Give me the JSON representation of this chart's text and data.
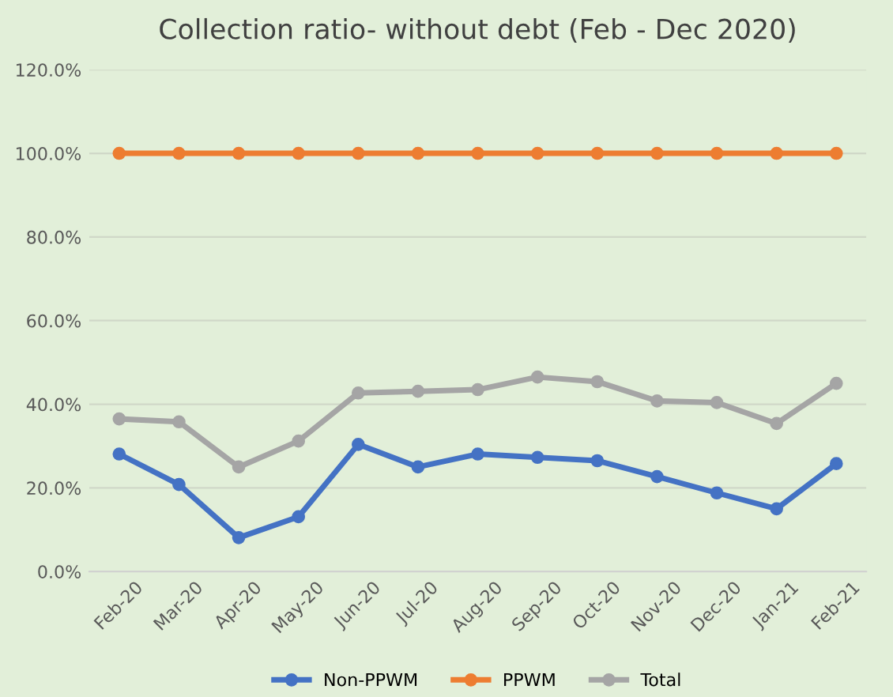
{
  "chart_data": {
    "type": "line",
    "title": "Collection ratio- without debt (Feb - Dec 2020)",
    "categories": [
      "Feb-20",
      "Mar-20",
      "Apr-20",
      "May-20",
      "Jun-20",
      "Jul-20",
      "Aug-20",
      "Sep-20",
      "Oct-20",
      "Nov-20",
      "Dec-20",
      "Jan-21",
      "Feb-21"
    ],
    "series": [
      {
        "name": "Non-PPWM",
        "color": "#4472c4",
        "values": [
          28.1,
          20.8,
          8.1,
          13.1,
          30.4,
          25.0,
          28.1,
          27.3,
          26.5,
          22.7,
          18.8,
          15.0,
          25.8
        ]
      },
      {
        "name": "PPWM",
        "color": "#ed7d31",
        "values": [
          100,
          100,
          100,
          100,
          100,
          100,
          100,
          100,
          100,
          100,
          100,
          100,
          100
        ]
      },
      {
        "name": "Total",
        "color": "#a5a5a5",
        "values": [
          36.5,
          35.8,
          25.0,
          31.2,
          42.7,
          43.1,
          43.5,
          46.5,
          45.4,
          40.8,
          40.4,
          35.4,
          45.0
        ]
      }
    ],
    "ylim": [
      0,
      120
    ],
    "yticks": [
      {
        "value": 0,
        "label": "0.0%"
      },
      {
        "value": 20,
        "label": "20.0%"
      },
      {
        "value": 40,
        "label": "40.0%"
      },
      {
        "value": 60,
        "label": "60.0%"
      },
      {
        "value": 80,
        "label": "80.0%"
      },
      {
        "value": 100,
        "label": "100.0%"
      },
      {
        "value": 120,
        "label": "120.0%"
      }
    ],
    "grid": "y",
    "legend": "bottom",
    "marker": "circle",
    "line_style": "solid"
  }
}
